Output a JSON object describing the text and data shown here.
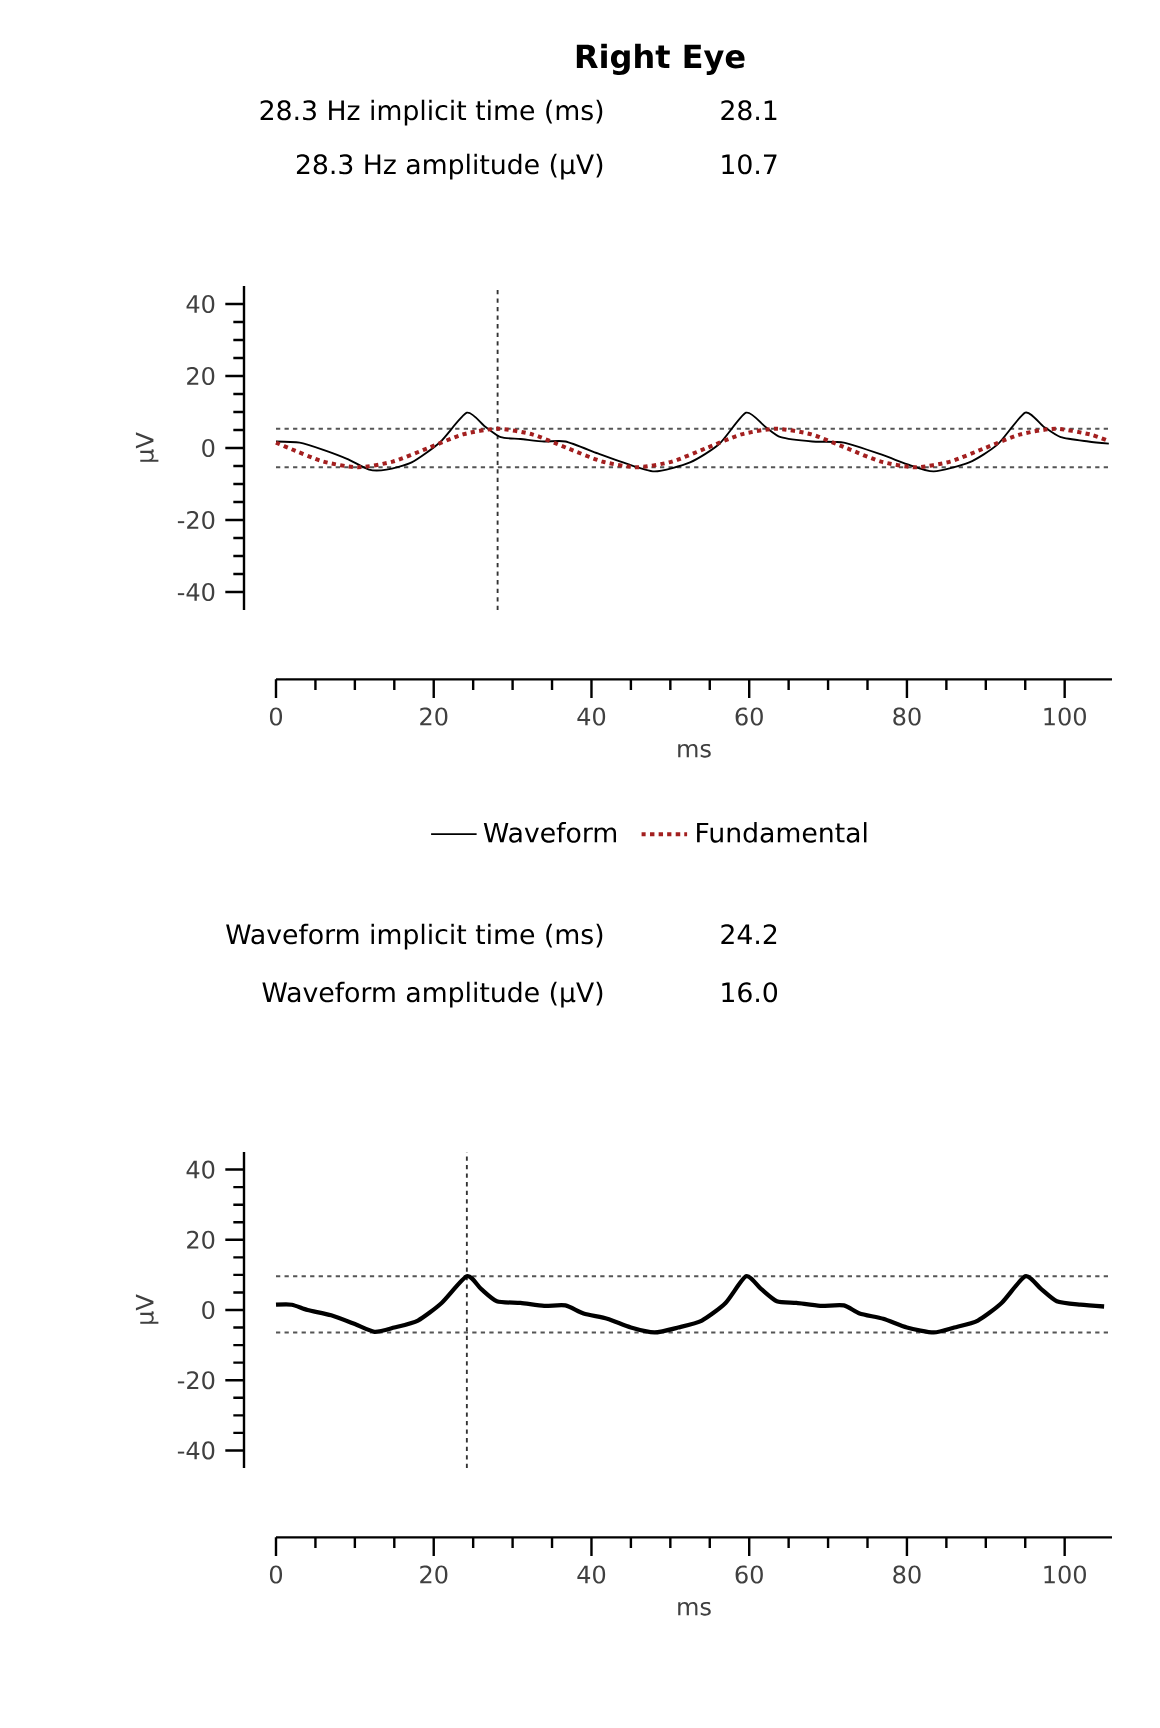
{
  "chart_data": [
    {
      "type": "line",
      "title": "Right Eye",
      "annotations": [
        "28.3 Hz implicit time (ms)",
        "28.1",
        "28.3 Hz amplitude (µV)",
        "10.7"
      ],
      "xlabel": "ms",
      "ylabel": "µV",
      "xlim": [
        0,
        106
      ],
      "ylim": [
        -45,
        45
      ],
      "xticks": [
        0,
        20,
        40,
        60,
        80,
        100
      ],
      "yticks": [
        -40,
        -20,
        0,
        20,
        40
      ],
      "legend": "bottom",
      "series": [
        {
          "name": "Waveform",
          "color": "#000000",
          "line_style": "solid",
          "x": [
            0,
            3,
            6,
            9,
            11.8,
            14,
            17.2,
            20.8,
            24.2,
            26.5,
            28.5,
            31,
            34,
            36.7,
            40.8,
            44,
            48,
            52.5,
            56.2,
            59.6,
            62,
            64,
            68,
            72,
            77,
            80,
            83.4,
            87.9,
            91.5,
            95,
            97.3,
            99.5,
            103,
            105.6
          ],
          "values": [
            1.8,
            1.5,
            -0.5,
            -3,
            -6,
            -6,
            -4,
            1.6,
            9.8,
            6,
            3,
            2.5,
            1.8,
            1.8,
            -1.5,
            -4,
            -6.5,
            -4,
            1.1,
            9.8,
            6,
            3,
            1.8,
            1.5,
            -2,
            -4.5,
            -6.5,
            -4,
            1,
            9.8,
            6,
            3,
            1.8,
            1.2
          ]
        },
        {
          "name": "Fundamental",
          "color": "#a31f1f",
          "line_style": "dotted",
          "x": [
            0,
            1.6,
            6.0,
            10.4,
            14.8,
            19.3,
            23.7,
            28.1,
            32.5,
            36.9,
            41.4,
            45.8,
            50.2,
            54.6,
            59.0,
            63.4,
            67.9,
            72.3,
            76.7,
            81.1,
            85.5,
            89.9,
            94.4,
            98.8,
            103.2,
            105.6
          ],
          "values": [
            1.5,
            0,
            -3.78,
            -5.35,
            -3.78,
            0,
            3.78,
            5.35,
            3.78,
            0,
            -3.78,
            -5.35,
            -3.78,
            0,
            3.78,
            5.35,
            3.78,
            0,
            -3.78,
            -5.35,
            -3.78,
            0,
            3.78,
            5.35,
            3.78,
            1.9
          ]
        }
      ],
      "ref_lines": [
        {
          "axis": "y",
          "value": 5.35,
          "color": "#555555",
          "line_style": "dotted"
        },
        {
          "axis": "y",
          "value": -5.35,
          "color": "#555555",
          "line_style": "dotted"
        },
        {
          "axis": "x",
          "value": 28.1,
          "color": "#333333",
          "line_style": "dotted"
        }
      ]
    },
    {
      "type": "line",
      "annotations": [
        "Waveform implicit time (ms)",
        "24.2",
        "Waveform amplitude (µV)",
        "16.0"
      ],
      "xlabel": "ms",
      "ylabel": "µV",
      "xlim": [
        0,
        106
      ],
      "ylim": [
        -45,
        45
      ],
      "xticks": [
        0,
        20,
        40,
        60,
        80,
        100
      ],
      "yticks": [
        -40,
        -20,
        0,
        20,
        40
      ],
      "series": [
        {
          "color": "#000000",
          "line_style": "solid",
          "x": [
            0,
            2,
            4,
            7,
            10,
            12.5,
            15,
            18,
            21,
            24.2,
            26,
            28,
            31,
            34,
            36.7,
            39,
            42,
            45,
            48,
            51,
            54,
            57,
            59.6,
            61.5,
            63.5,
            66,
            69,
            72,
            74,
            77,
            80,
            83.4,
            86,
            89,
            92,
            95,
            97,
            99,
            102,
            105
          ],
          "values": [
            1.5,
            1.5,
            0,
            -1.5,
            -4,
            -6.2,
            -5,
            -3,
            2,
            9.6,
            6,
            2.5,
            2,
            1.2,
            1.3,
            -1,
            -2.5,
            -5,
            -6.4,
            -5,
            -3,
            2,
            9.6,
            6,
            2.5,
            2,
            1.2,
            1.3,
            -1,
            -2.5,
            -5,
            -6.4,
            -5,
            -3,
            2,
            9.6,
            6,
            2.5,
            1.5,
            1
          ]
        }
      ],
      "ref_lines": [
        {
          "axis": "y",
          "value": 9.6,
          "color": "#555555",
          "line_style": "dotted"
        },
        {
          "axis": "y",
          "value": -6.4,
          "color": "#555555",
          "line_style": "dotted"
        },
        {
          "axis": "x",
          "value": 24.2,
          "color": "#333333",
          "line_style": "dotted"
        }
      ]
    }
  ]
}
